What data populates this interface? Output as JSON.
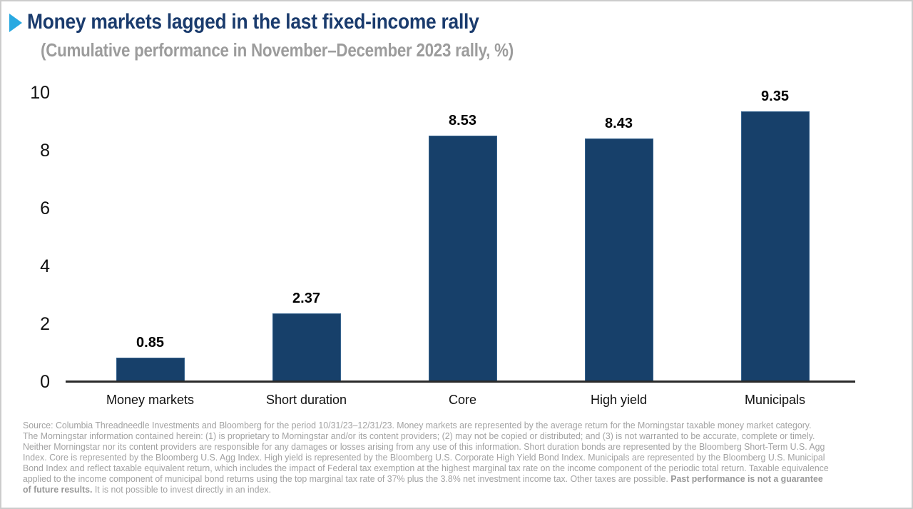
{
  "page": {
    "title": "Money markets lagged in the last fixed-income rally",
    "subtitle": "(Cumulative performance in November–December 2023 rally, %)"
  },
  "colors": {
    "accent_arrow": "#29A9E1",
    "title_navy": "#1A3B6D",
    "subtitle_gray": "#9C9C9C",
    "bar_fill": "#17406A",
    "axis_line": "#2A2A2A",
    "footnote_gray": "#A2A2A2"
  },
  "chart_data": {
    "type": "bar",
    "title": "Money markets lagged in the last fixed-income rally",
    "subtitle": "(Cumulative performance in November–December 2023 rally, %)",
    "categories": [
      "Money markets",
      "Short duration",
      "Core",
      "High yield",
      "Municipals"
    ],
    "values": [
      0.85,
      2.37,
      8.53,
      8.43,
      9.35
    ],
    "value_labels": [
      "0.85",
      "2.37",
      "8.53",
      "8.43",
      "9.35"
    ],
    "xlabel": "",
    "ylabel": "",
    "ylim": [
      0,
      10
    ],
    "yticks": [
      0,
      2,
      4,
      6,
      8,
      10
    ],
    "grid": false,
    "legend": false,
    "bar_color": "#17406A"
  },
  "footnote": {
    "lines": [
      [
        {
          "text": "Source: Columbia Threadneedle Investments and Bloomberg for the period 10/31/23–12/31/23. Money markets are represented by the average return for the Morningstar taxable money market category.",
          "bold": false
        }
      ],
      [
        {
          "text": "The Morningstar information contained herein: (1) is proprietary to Morningstar and/or its content providers; (2) may not be copied or distributed; and (3) is not warranted to be accurate, complete or timely.",
          "bold": false
        }
      ],
      [
        {
          "text": "Neither Morningstar nor its content providers are responsible for any damages or losses arising from any use of this information. Short duration bonds are represented by the Bloomberg Short-Term U.S. Agg",
          "bold": false
        }
      ],
      [
        {
          "text": "Index. Core is represented by the Bloomberg U.S. Agg Index. High yield is represented by the Bloomberg U.S. Corporate High Yield Bond Index. Municipals are represented by the Bloomberg U.S. Municipal",
          "bold": false
        }
      ],
      [
        {
          "text": "Bond Index and reflect taxable equivalent return, which includes the impact of Federal tax exemption at the highest marginal tax rate on the income component of the periodic total return. Taxable equivalence",
          "bold": false
        }
      ],
      [
        {
          "text": "applied to the income component of municipal bond returns using the top marginal tax rate of 37% plus the 3.8% net investment income tax. Other taxes are possible. ",
          "bold": false
        },
        {
          "text": "Past performance is not a guarantee",
          "bold": true
        }
      ],
      [
        {
          "text": "of future results.",
          "bold": true
        },
        {
          "text": " It is not possible to invest directly in an index.",
          "bold": false
        }
      ]
    ]
  }
}
